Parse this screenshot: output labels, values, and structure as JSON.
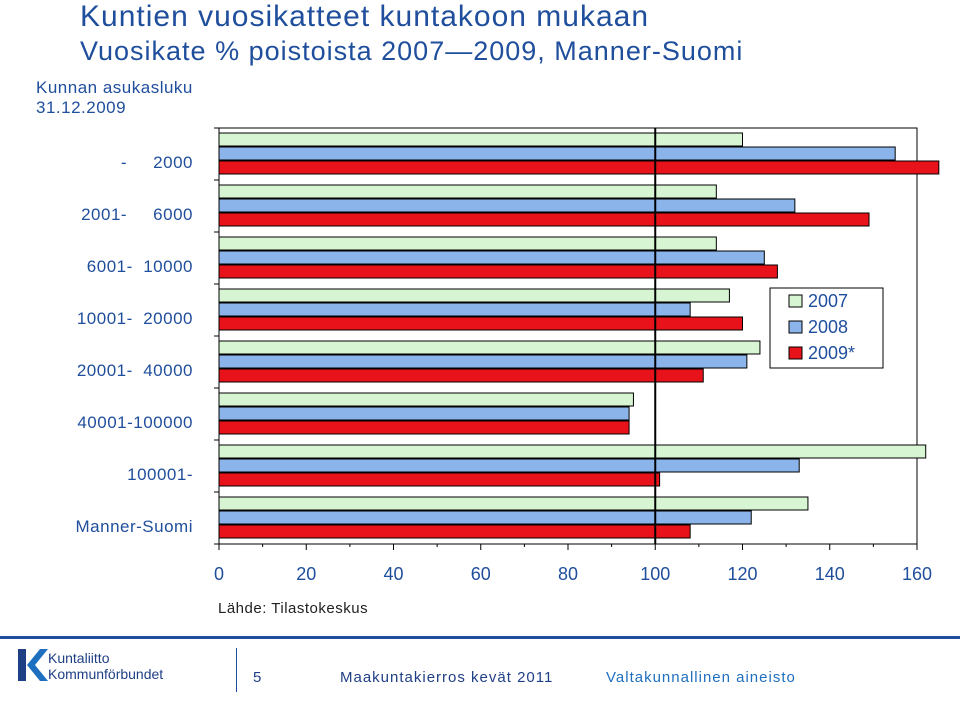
{
  "header": {
    "title": "Kuntien vuosikatteet kuntakoon mukaan",
    "subtitle": "Vuosikate % poistoista 2007—2009, Manner-Suomi",
    "population_caption_line1": "Kunnan asukasluku",
    "population_caption_line2": "31.12.2009"
  },
  "source": "Lähde: Tilastokeskus",
  "footer": {
    "logo_line1": "Kuntaliitto",
    "logo_line2": "Kommunförbundet",
    "page_number": "5",
    "event": "Maakuntakierros kevät 2011",
    "tagline": "Valtakunnallinen aineisto"
  },
  "colors": {
    "title": "#1f4e9c",
    "s2007": "#d7f5d3",
    "s2008": "#8ab4ea",
    "s2009": "#e8121a"
  },
  "chart_data": {
    "type": "bar",
    "orientation": "horizontal",
    "categories": [
      "-     2000",
      "2001-     6000",
      "6001-  10000",
      "10001-  20000",
      "20001-  40000",
      "40001-100000",
      "100001-",
      "Manner-Suomi"
    ],
    "series": [
      {
        "name": "2007",
        "values": [
          120,
          114,
          114,
          117,
          124,
          95,
          162,
          135
        ]
      },
      {
        "name": "2008",
        "values": [
          155,
          132,
          125,
          108,
          121,
          94,
          133,
          122
        ]
      },
      {
        "name": "2009*",
        "values": [
          165,
          149,
          128,
          120,
          111,
          94,
          101,
          108
        ]
      }
    ],
    "xlim": [
      0,
      160
    ],
    "xticks": [
      0,
      20,
      40,
      60,
      80,
      100,
      120,
      140,
      160
    ],
    "reference_line": 100,
    "legend_position": "right-center",
    "grid": false
  }
}
